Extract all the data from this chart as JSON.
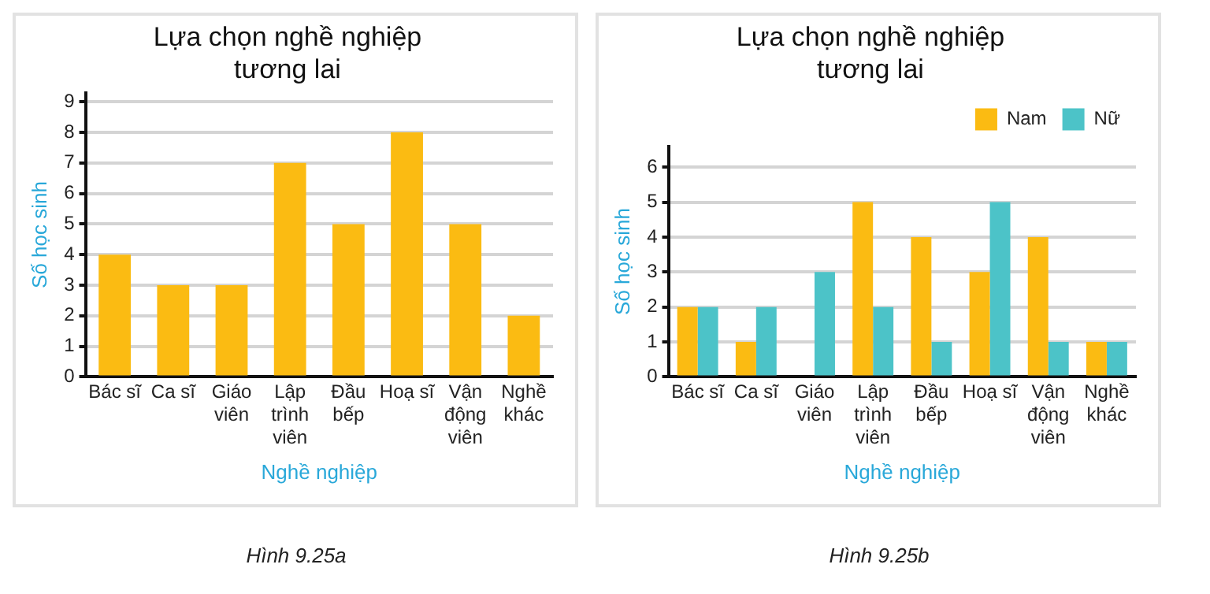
{
  "chart_data": [
    {
      "type": "bar",
      "title": "Lựa chọn nghề nghiệp tương lai",
      "xlabel": "Nghề nghiệp",
      "ylabel": "Số học sinh",
      "categories": [
        "Bác sĩ",
        "Ca sĩ",
        "Giáo viên",
        "Lập trình viên",
        "Đầu bếp",
        "Hoạ sĩ",
        "Vận động viên",
        "Nghề khác"
      ],
      "values": [
        4,
        3,
        3,
        7,
        5,
        8,
        5,
        2
      ],
      "color": "#fbbb12",
      "ylim": [
        0,
        9.3
      ],
      "yticks": [
        0,
        1,
        2,
        3,
        4,
        5,
        6,
        7,
        8,
        9
      ],
      "grid": "y",
      "annotations": [
        "Hình 9.25a"
      ]
    },
    {
      "type": "bar",
      "title": "Lựa chọn nghề nghiệp tương lai",
      "xlabel": "Nghề nghiệp",
      "ylabel": "Số học sinh",
      "categories": [
        "Bác sĩ",
        "Ca sĩ",
        "Giáo viên",
        "Lập trình viên",
        "Đầu bếp",
        "Hoạ sĩ",
        "Vận động viên",
        "Nghề khác"
      ],
      "series": [
        {
          "name": "Nam",
          "color": "#fbbb12",
          "values": [
            2,
            1,
            0,
            5,
            4,
            3,
            4,
            1
          ]
        },
        {
          "name": "Nữ",
          "color": "#4cc3c8",
          "values": [
            2,
            2,
            3,
            2,
            1,
            5,
            1,
            1
          ]
        }
      ],
      "ylim": [
        0,
        6.6
      ],
      "yticks": [
        0,
        1,
        2,
        3,
        4,
        5,
        6
      ],
      "grid": "y",
      "legend": "top right",
      "annotations": [
        "Hình 9.25b"
      ]
    }
  ]
}
